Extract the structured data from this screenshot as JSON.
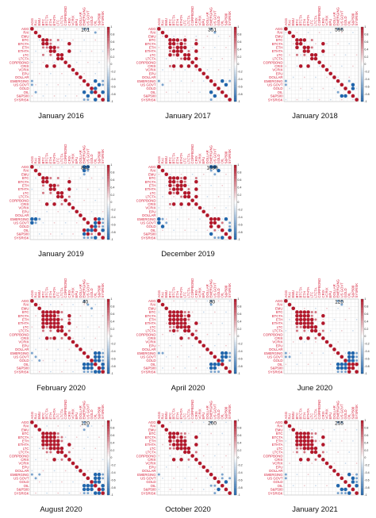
{
  "figure": {
    "variables": [
      "AGG",
      "RAI",
      "EMU",
      "BTC",
      "BTCTA",
      "ETH",
      "ETHTA",
      "LTC",
      "LTCTA",
      "CORPBOND",
      "CRIX",
      "VCRIX",
      "EPU",
      "DOLLAR",
      "EMERGING",
      "US GOVT",
      "GOLD",
      "OIL",
      "S&P500",
      "SYSRISK"
    ],
    "colorbar_ticks": [
      "1",
      "0.8",
      "0.6",
      "0.4",
      "0.2",
      "0",
      "-0.2",
      "-0.4",
      "-0.6",
      "-0.8",
      "-1"
    ],
    "colorscale": {
      "positive": "#b2182b",
      "neutral": "#ffffff",
      "negative": "#2166ac"
    },
    "label_color": "#d6203a"
  },
  "chart_data": [
    {
      "type": "heatmap",
      "caption": "January 2016",
      "window": "101",
      "strong_pos": [
        [
          3,
          4
        ],
        [
          5,
          6
        ],
        [
          7,
          8
        ],
        [
          4,
          10
        ],
        [
          6,
          10
        ]
      ],
      "medium_pos": [
        [
          3,
          5
        ],
        [
          4,
          5
        ],
        [
          3,
          7
        ],
        [
          5,
          7
        ]
      ],
      "strong_neg": [
        [
          14,
          17
        ],
        [
          16,
          17
        ],
        [
          15,
          18
        ],
        [
          17,
          19
        ]
      ],
      "medium_neg": [
        [
          0,
          14
        ],
        [
          0,
          15
        ],
        [
          1,
          17
        ],
        [
          14,
          19
        ],
        [
          15,
          19
        ]
      ]
    },
    {
      "type": "heatmap",
      "caption": "January 2017",
      "window": "351",
      "strong_pos": [
        [
          3,
          4
        ],
        [
          3,
          5
        ],
        [
          4,
          6
        ],
        [
          5,
          6
        ],
        [
          3,
          7
        ],
        [
          5,
          7
        ],
        [
          7,
          8
        ],
        [
          4,
          10
        ],
        [
          6,
          10
        ],
        [
          8,
          10
        ]
      ],
      "medium_pos": [
        [
          4,
          5
        ],
        [
          3,
          6
        ],
        [
          4,
          7
        ],
        [
          6,
          8
        ],
        [
          3,
          10
        ]
      ],
      "strong_neg": [
        [
          14,
          17
        ],
        [
          15,
          18
        ]
      ],
      "medium_neg": [
        [
          0,
          14
        ],
        [
          1,
          15
        ],
        [
          14,
          19
        ]
      ]
    },
    {
      "type": "heatmap",
      "caption": "January 2018",
      "window": "596",
      "strong_pos": [
        [
          3,
          4
        ],
        [
          3,
          5
        ],
        [
          5,
          6
        ],
        [
          4,
          10
        ],
        [
          6,
          10
        ],
        [
          7,
          8
        ]
      ],
      "medium_pos": [
        [
          3,
          7
        ],
        [
          5,
          7
        ]
      ],
      "strong_neg": [
        [
          15,
          18
        ],
        [
          16,
          18
        ]
      ],
      "medium_neg": [
        [
          0,
          14
        ],
        [
          0,
          15
        ],
        [
          14,
          17
        ]
      ]
    },
    {
      "type": "heatmap",
      "caption": "January 2019",
      "window": "842",
      "strong_pos": [
        [
          3,
          4
        ],
        [
          5,
          6
        ],
        [
          7,
          8
        ],
        [
          4,
          10
        ],
        [
          6,
          10
        ],
        [
          14,
          17
        ],
        [
          15,
          18
        ]
      ],
      "medium_pos": [
        [
          3,
          5
        ],
        [
          3,
          7
        ],
        [
          5,
          7
        ],
        [
          16,
          18
        ],
        [
          8,
          10
        ]
      ],
      "strong_neg": [
        [
          0,
          14
        ],
        [
          0,
          15
        ],
        [
          1,
          14
        ],
        [
          14,
          18
        ],
        [
          15,
          17
        ],
        [
          16,
          17
        ],
        [
          17,
          19
        ]
      ],
      "medium_neg": [
        [
          1,
          15
        ],
        [
          2,
          14
        ],
        [
          14,
          19
        ],
        [
          15,
          19
        ],
        [
          16,
          19
        ]
      ]
    },
    {
      "type": "heatmap",
      "caption": "December 2019",
      "window": "1089",
      "strong_pos": [
        [
          3,
          4
        ],
        [
          3,
          5
        ],
        [
          3,
          7
        ],
        [
          4,
          6
        ],
        [
          5,
          6
        ],
        [
          5,
          7
        ],
        [
          7,
          8
        ],
        [
          4,
          10
        ],
        [
          6,
          10
        ],
        [
          8,
          10
        ],
        [
          14,
          15
        ],
        [
          14,
          16
        ]
      ],
      "medium_pos": [
        [
          4,
          5
        ],
        [
          3,
          6
        ],
        [
          4,
          7
        ],
        [
          6,
          8
        ],
        [
          3,
          10
        ],
        [
          15,
          17
        ]
      ],
      "strong_neg": [
        [
          0,
          14
        ],
        [
          0,
          15
        ],
        [
          1,
          16
        ],
        [
          14,
          18
        ],
        [
          17,
          19
        ]
      ],
      "medium_neg": [
        [
          1,
          14
        ],
        [
          2,
          15
        ],
        [
          15,
          19
        ],
        [
          16,
          19
        ]
      ]
    },
    {
      "type": "heatmap",
      "caption": "February 2020",
      "window": "40",
      "strong_pos": [
        [
          3,
          4
        ],
        [
          3,
          5
        ],
        [
          3,
          6
        ],
        [
          3,
          7
        ],
        [
          4,
          5
        ],
        [
          4,
          6
        ],
        [
          5,
          6
        ],
        [
          5,
          7
        ],
        [
          6,
          7
        ],
        [
          7,
          8
        ],
        [
          4,
          10
        ],
        [
          6,
          10
        ]
      ],
      "medium_pos": [
        [
          4,
          7
        ],
        [
          5,
          8
        ],
        [
          3,
          8
        ],
        [
          8,
          10
        ],
        [
          5,
          10
        ]
      ],
      "strong_neg": [
        [
          14,
          17
        ],
        [
          14,
          18
        ],
        [
          15,
          17
        ],
        [
          15,
          18
        ],
        [
          16,
          17
        ],
        [
          16,
          18
        ],
        [
          17,
          19
        ],
        [
          18,
          19
        ]
      ],
      "medium_neg": [
        [
          14,
          19
        ],
        [
          15,
          19
        ],
        [
          16,
          19
        ],
        [
          0,
          14
        ],
        [
          1,
          15
        ],
        [
          2,
          16
        ]
      ]
    },
    {
      "type": "heatmap",
      "caption": "April 2020",
      "window": "80",
      "strong_pos": [
        [
          3,
          4
        ],
        [
          3,
          5
        ],
        [
          3,
          6
        ],
        [
          4,
          5
        ],
        [
          4,
          6
        ],
        [
          5,
          6
        ],
        [
          5,
          7
        ],
        [
          6,
          7
        ],
        [
          7,
          8
        ],
        [
          4,
          8
        ],
        [
          6,
          10
        ]
      ],
      "medium_pos": [
        [
          3,
          7
        ],
        [
          4,
          7
        ],
        [
          3,
          8
        ],
        [
          5,
          8
        ],
        [
          8,
          10
        ]
      ],
      "strong_neg": [
        [
          14,
          17
        ],
        [
          14,
          18
        ],
        [
          15,
          17
        ],
        [
          15,
          18
        ],
        [
          16,
          17
        ]
      ],
      "medium_neg": [
        [
          14,
          19
        ],
        [
          15,
          19
        ],
        [
          16,
          19
        ],
        [
          0,
          14
        ],
        [
          1,
          14
        ]
      ]
    },
    {
      "type": "heatmap",
      "caption": "June 2020",
      "window": "120",
      "strong_pos": [
        [
          3,
          4
        ],
        [
          3,
          5
        ],
        [
          3,
          6
        ],
        [
          4,
          5
        ],
        [
          4,
          6
        ],
        [
          5,
          6
        ],
        [
          5,
          7
        ],
        [
          6,
          7
        ],
        [
          7,
          8
        ],
        [
          4,
          10
        ],
        [
          6,
          10
        ],
        [
          17,
          18
        ],
        [
          17,
          19
        ]
      ],
      "medium_pos": [
        [
          3,
          7
        ],
        [
          4,
          7
        ],
        [
          3,
          8
        ],
        [
          5,
          8
        ],
        [
          8,
          10
        ]
      ],
      "strong_neg": [
        [
          14,
          17
        ],
        [
          14,
          18
        ],
        [
          15,
          17
        ],
        [
          15,
          18
        ],
        [
          16,
          17
        ],
        [
          16,
          18
        ]
      ],
      "medium_neg": [
        [
          14,
          19
        ],
        [
          15,
          19
        ],
        [
          16,
          19
        ],
        [
          0,
          14
        ],
        [
          0,
          15
        ],
        [
          1,
          15
        ]
      ]
    },
    {
      "type": "heatmap",
      "caption": "August 2020",
      "window": "120",
      "strong_pos": [
        [
          3,
          4
        ],
        [
          3,
          5
        ],
        [
          3,
          6
        ],
        [
          4,
          5
        ],
        [
          4,
          6
        ],
        [
          5,
          6
        ],
        [
          5,
          7
        ],
        [
          6,
          7
        ],
        [
          7,
          8
        ],
        [
          6,
          10
        ]
      ],
      "medium_pos": [
        [
          3,
          7
        ],
        [
          4,
          7
        ],
        [
          4,
          8
        ],
        [
          5,
          8
        ],
        [
          8,
          10
        ]
      ],
      "strong_neg": [
        [
          14,
          17
        ],
        [
          14,
          18
        ],
        [
          15,
          17
        ],
        [
          15,
          18
        ],
        [
          16,
          17
        ],
        [
          16,
          18
        ],
        [
          17,
          19
        ],
        [
          18,
          19
        ]
      ],
      "medium_neg": [
        [
          0,
          14
        ],
        [
          1,
          15
        ],
        [
          2,
          14
        ],
        [
          14,
          19
        ],
        [
          15,
          19
        ]
      ]
    },
    {
      "type": "heatmap",
      "caption": "October 2020",
      "window": "200",
      "strong_pos": [
        [
          3,
          4
        ],
        [
          3,
          5
        ],
        [
          4,
          6
        ],
        [
          5,
          6
        ],
        [
          5,
          7
        ],
        [
          6,
          7
        ],
        [
          7,
          8
        ],
        [
          4,
          10
        ],
        [
          6,
          10
        ]
      ],
      "medium_pos": [
        [
          3,
          6
        ],
        [
          4,
          5
        ],
        [
          4,
          7
        ],
        [
          3,
          7
        ],
        [
          8,
          10
        ]
      ],
      "strong_neg": [
        [
          16,
          18
        ]
      ],
      "medium_neg": [
        [
          0,
          14
        ],
        [
          14,
          17
        ],
        [
          15,
          17
        ],
        [
          15,
          19
        ]
      ]
    },
    {
      "type": "heatmap",
      "caption": "January 2021",
      "window": "255",
      "strong_pos": [
        [
          3,
          4
        ],
        [
          3,
          5
        ],
        [
          3,
          6
        ],
        [
          4,
          5
        ],
        [
          4,
          6
        ],
        [
          5,
          6
        ],
        [
          5,
          7
        ],
        [
          6,
          7
        ],
        [
          7,
          8
        ],
        [
          4,
          10
        ],
        [
          6,
          10
        ]
      ],
      "medium_pos": [
        [
          3,
          7
        ],
        [
          4,
          7
        ],
        [
          3,
          8
        ],
        [
          5,
          8
        ],
        [
          8,
          10
        ]
      ],
      "strong_neg": [
        [
          14,
          17
        ],
        [
          15,
          18
        ],
        [
          16,
          18
        ],
        [
          17,
          19
        ]
      ],
      "medium_neg": [
        [
          0,
          14
        ],
        [
          0,
          15
        ],
        [
          14,
          19
        ],
        [
          15,
          19
        ],
        [
          16,
          19
        ]
      ]
    }
  ]
}
